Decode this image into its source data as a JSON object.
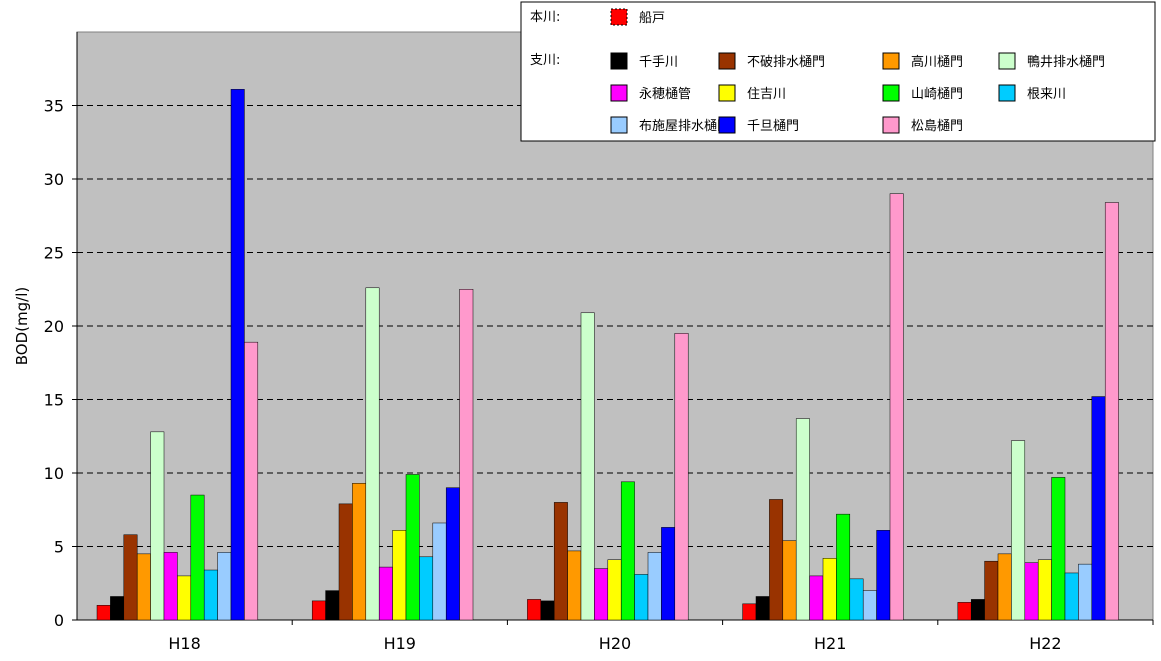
{
  "chart_data": {
    "type": "bar",
    "title": "",
    "xlabel": "",
    "ylabel": "BOD(mg/l)",
    "ylim": [
      0,
      40
    ],
    "yticks": [
      0,
      5,
      10,
      15,
      20,
      25,
      30,
      35
    ],
    "grid": "horizontal-dashed",
    "plot_background": "#c0c0c0",
    "legend_position": "top-right",
    "categories": [
      "H18",
      "H19",
      "H20",
      "H21",
      "H22"
    ],
    "legend_groups": [
      {
        "label": "本川:",
        "series": [
          "船戸"
        ]
      },
      {
        "label": "支川:",
        "series": [
          "千手川",
          "不破排水樋門",
          "高川樋門",
          "鴨井排水樋門",
          "永穂樋管",
          "住吉川",
          "山崎樋門",
          "根来川",
          "布施屋排水樋門",
          "千旦樋門",
          "松島樋門"
        ]
      }
    ],
    "series": [
      {
        "name": "船戸",
        "color": "#ff0000",
        "values": [
          1.0,
          1.3,
          1.4,
          1.1,
          1.2
        ]
      },
      {
        "name": "千手川",
        "color": "#000000",
        "values": [
          1.6,
          2.0,
          1.3,
          1.6,
          1.4
        ]
      },
      {
        "name": "不破排水樋門",
        "color": "#993300",
        "values": [
          5.8,
          7.9,
          8.0,
          8.2,
          4.0
        ]
      },
      {
        "name": "高川樋門",
        "color": "#ff9900",
        "values": [
          4.5,
          9.3,
          4.7,
          5.4,
          4.5
        ]
      },
      {
        "name": "鴨井排水樋門",
        "color": "#ccffcc",
        "values": [
          12.8,
          22.6,
          20.9,
          13.7,
          12.2
        ]
      },
      {
        "name": "永穂樋管",
        "color": "#ff00ff",
        "values": [
          4.6,
          3.6,
          3.5,
          3.0,
          3.9
        ]
      },
      {
        "name": "住吉川",
        "color": "#ffff00",
        "values": [
          3.0,
          6.1,
          4.1,
          4.2,
          4.1
        ]
      },
      {
        "name": "山崎樋門",
        "color": "#00ff00",
        "values": [
          8.5,
          9.9,
          9.4,
          7.2,
          9.7
        ]
      },
      {
        "name": "根来川",
        "color": "#00ccff",
        "values": [
          3.4,
          4.3,
          3.1,
          2.8,
          3.2
        ]
      },
      {
        "name": "布施屋排水樋門",
        "color": "#99ccff",
        "values": [
          4.6,
          6.6,
          4.6,
          2.0,
          3.8
        ]
      },
      {
        "name": "千旦樋門",
        "color": "#0000ff",
        "values": [
          36.1,
          9.0,
          6.3,
          6.1,
          15.2
        ]
      },
      {
        "name": "松島樋門",
        "color": "#ff99cc",
        "values": [
          18.9,
          22.5,
          19.5,
          29.0,
          28.4
        ]
      }
    ]
  }
}
